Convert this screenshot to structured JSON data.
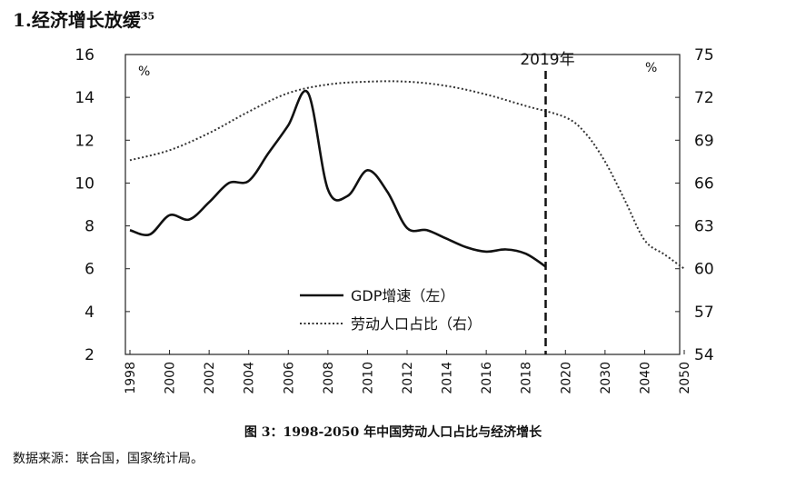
{
  "heading": {
    "text": "1.经济增长放缓",
    "note": "35"
  },
  "chart_data": {
    "type": "line",
    "title": "图 3：1998-2050 年中国劳动人口占比与经济增长",
    "source": "数据来源：联合国，国家统计局。",
    "left_axis": {
      "unit": "%",
      "ticks": [
        "16",
        "14",
        "12",
        "10",
        "8",
        "6",
        "4",
        "2"
      ],
      "ylim": [
        2,
        16
      ]
    },
    "right_axis": {
      "unit": "%",
      "ticks": [
        "75",
        "72",
        "69",
        "66",
        "63",
        "60",
        "57",
        "54"
      ],
      "ylim": [
        54,
        75
      ]
    },
    "x_ticks": [
      "1998",
      "2000",
      "2002",
      "2004",
      "2006",
      "2008",
      "2010",
      "2012",
      "2014",
      "2016",
      "2018",
      "2020",
      "2030",
      "2040",
      "2050"
    ],
    "marker": {
      "label": "2019年",
      "x": 2019
    },
    "series": [
      {
        "name": "GDP增速（左）",
        "axis": "left",
        "style": "solid",
        "x": [
          1998,
          1999,
          2000,
          2001,
          2002,
          2003,
          2004,
          2005,
          2006,
          2007,
          2008,
          2009,
          2010,
          2011,
          2012,
          2013,
          2014,
          2015,
          2016,
          2017,
          2018,
          2019
        ],
        "values": [
          7.8,
          7.6,
          8.5,
          8.3,
          9.1,
          10.0,
          10.1,
          11.4,
          12.7,
          14.2,
          9.7,
          9.4,
          10.6,
          9.6,
          7.9,
          7.8,
          7.4,
          7.0,
          6.8,
          6.9,
          6.7,
          6.1
        ]
      },
      {
        "name": "劳动人口占比（右）",
        "axis": "right",
        "style": "dotted",
        "x": [
          1998,
          2000,
          2002,
          2004,
          2006,
          2008,
          2010,
          2012,
          2014,
          2016,
          2018,
          2020,
          2025,
          2030,
          2035,
          2040,
          2045,
          2050
        ],
        "values": [
          67.6,
          68.3,
          69.5,
          71.0,
          72.3,
          72.9,
          73.1,
          73.1,
          72.8,
          72.2,
          71.4,
          70.6,
          69.5,
          67.5,
          64.8,
          62.0,
          61.0,
          60.0
        ]
      }
    ]
  }
}
